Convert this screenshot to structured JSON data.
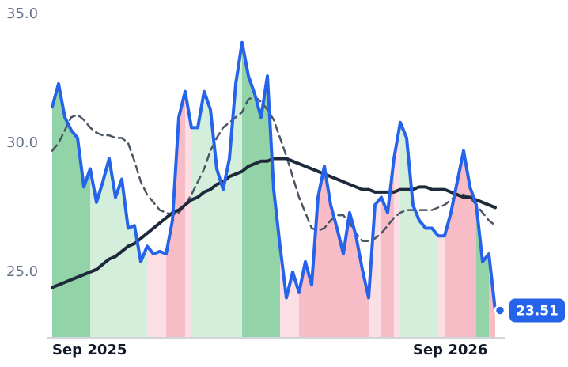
{
  "chart_data": {
    "type": "line",
    "categories": [
      "Sep 2025",
      null,
      null,
      null,
      null,
      null,
      null,
      null,
      null,
      null,
      null,
      null,
      null,
      null,
      null,
      null,
      null,
      null,
      null,
      null,
      null,
      null,
      null,
      null,
      null,
      null,
      null,
      null,
      null,
      null,
      null,
      null,
      null,
      null,
      null,
      null,
      null,
      null,
      null,
      null,
      null,
      null,
      null,
      null,
      null,
      null,
      null,
      null,
      null,
      null,
      null,
      null,
      null,
      null,
      null,
      null,
      null,
      "Sep 2026",
      null,
      null,
      null,
      null,
      null,
      null,
      null,
      null,
      null,
      null,
      null,
      null,
      null
    ],
    "ylim": [
      22.45,
      35.55
    ],
    "yticks": [
      {
        "value": 25,
        "label": "25.0"
      },
      {
        "value": 30,
        "label": "30.0"
      },
      {
        "value": 35,
        "label": "35.0"
      }
    ],
    "grid": false,
    "series": [
      {
        "color": "#2563eb",
        "style": "solid",
        "width": 4,
        "values": [
          31.4,
          32.3,
          31.0,
          30.5,
          30.2,
          28.3,
          29.0,
          27.7,
          28.5,
          29.4,
          27.9,
          28.6,
          26.7,
          26.8,
          25.4,
          26.0,
          25.7,
          25.8,
          25.7,
          27.0,
          31.0,
          32.0,
          30.6,
          30.6,
          32.0,
          31.3,
          29.0,
          28.2,
          29.4,
          32.3,
          33.9,
          32.6,
          31.9,
          31.0,
          32.6,
          28.2,
          26.0,
          24.0,
          25.0,
          24.2,
          25.4,
          24.5,
          27.9,
          29.1,
          27.6,
          26.7,
          25.7,
          27.3,
          26.4,
          25.1,
          24.0,
          27.6,
          27.9,
          27.3,
          29.4,
          30.8,
          30.2,
          27.6,
          27.0,
          26.7,
          26.7,
          26.4,
          26.4,
          27.3,
          28.5,
          29.7,
          28.3,
          27.6,
          25.4,
          25.7,
          23.51
        ],
        "area_colors": [
          "#93d3a8",
          "#93d3a8",
          "#93d3a8",
          "#93d3a8",
          "#93d3a8",
          "#93d3a8",
          "#d4eedc",
          "#d4eedc",
          "#d4eedc",
          "#d4eedc",
          "#d4eedc",
          "#d4eedc",
          "#d4eedc",
          "#d4eedc",
          "#d4eedc",
          "#fcdfe4",
          "#fcdfe4",
          "#fcdfe4",
          "#f8bcc6",
          "#f8bcc6",
          "#f8bcc6",
          "#fcdfe4",
          "#d4eedc",
          "#d4eedc",
          "#d4eedc",
          "#d4eedc",
          "#d4eedc",
          "#d4eedc",
          "#d4eedc",
          "#d4eedc",
          "#93d3a8",
          "#93d3a8",
          "#93d3a8",
          "#93d3a8",
          "#93d3a8",
          "#93d3a8",
          "#fcdfe4",
          "#fcdfe4",
          "#fcdfe4",
          "#f8bcc6",
          "#f8bcc6",
          "#f8bcc6",
          "#f8bcc6",
          "#f8bcc6",
          "#f8bcc6",
          "#f8bcc6",
          "#f8bcc6",
          "#f8bcc6",
          "#f8bcc6",
          "#f8bcc6",
          "#fcdfe4",
          "#fcdfe4",
          "#f8bcc6",
          "#f8bcc6",
          "#fcdfe4",
          "#d4eedc",
          "#d4eedc",
          "#d4eedc",
          "#d4eedc",
          "#d4eedc",
          "#d4eedc",
          "#fcdfe4",
          "#f8bcc6",
          "#f8bcc6",
          "#f8bcc6",
          "#f8bcc6",
          "#f8bcc6",
          "#93d3a8",
          "#93d3a8",
          "#f8bcc6",
          "#f8bcc6"
        ]
      },
      {
        "color": "#1e293b",
        "style": "solid",
        "width": 4,
        "values": [
          24.4,
          24.5,
          24.6,
          24.7,
          24.8,
          24.9,
          25.0,
          25.1,
          25.3,
          25.5,
          25.6,
          25.8,
          26.0,
          26.1,
          26.3,
          26.5,
          26.7,
          26.9,
          27.1,
          27.3,
          27.4,
          27.6,
          27.8,
          27.9,
          28.1,
          28.2,
          28.4,
          28.5,
          28.7,
          28.8,
          28.9,
          29.1,
          29.2,
          29.3,
          29.3,
          29.4,
          29.4,
          29.4,
          29.3,
          29.2,
          29.1,
          29.0,
          28.9,
          28.8,
          28.7,
          28.6,
          28.5,
          28.4,
          28.3,
          28.2,
          28.2,
          28.1,
          28.1,
          28.1,
          28.1,
          28.2,
          28.2,
          28.2,
          28.3,
          28.3,
          28.2,
          28.2,
          28.2,
          28.1,
          28.0,
          27.9,
          27.9,
          27.8,
          27.7,
          27.6,
          27.5
        ]
      },
      {
        "color": "#4b5563",
        "style": "dashed",
        "width": 2.5,
        "values": [
          29.7,
          30.0,
          30.5,
          31.0,
          31.1,
          30.9,
          30.6,
          30.4,
          30.3,
          30.3,
          30.2,
          30.2,
          30.0,
          29.3,
          28.5,
          28.0,
          27.7,
          27.4,
          27.3,
          27.2,
          27.3,
          27.6,
          28.0,
          28.5,
          29.0,
          29.7,
          30.2,
          30.6,
          30.8,
          31.0,
          31.2,
          31.7,
          31.8,
          31.6,
          31.3,
          30.9,
          30.2,
          29.5,
          28.7,
          27.9,
          27.3,
          26.7,
          26.6,
          26.7,
          27.0,
          27.2,
          27.2,
          26.9,
          26.5,
          26.2,
          26.2,
          26.3,
          26.5,
          26.8,
          27.1,
          27.3,
          27.4,
          27.4,
          27.4,
          27.4,
          27.4,
          27.5,
          27.6,
          27.8,
          28.0,
          28.0,
          27.9,
          27.6,
          27.3,
          27.0,
          26.8
        ]
      }
    ]
  }
}
